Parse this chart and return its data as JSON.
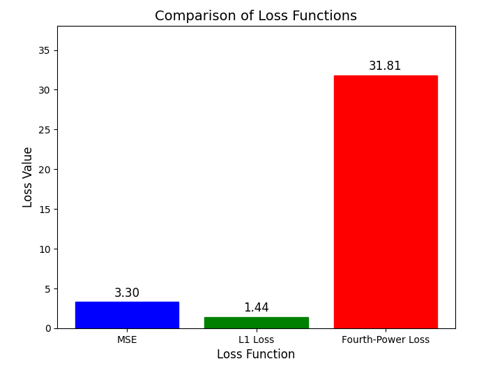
{
  "categories": [
    "MSE",
    "L1 Loss",
    "Fourth-Power Loss"
  ],
  "values": [
    3.3,
    1.44,
    31.81
  ],
  "bar_colors": [
    "blue",
    "green",
    "red"
  ],
  "title": "Comparison of Loss Functions",
  "xlabel": "Loss Function",
  "ylabel": "Loss Value",
  "ylim": [
    0,
    38
  ],
  "yticks": [
    0,
    5,
    10,
    15,
    20,
    25,
    30,
    35
  ],
  "title_fontsize": 14,
  "label_fontsize": 12,
  "value_label_fontsize": 12,
  "bar_width": 0.8,
  "figsize": [
    6.87,
    5.34
  ],
  "dpi": 100
}
